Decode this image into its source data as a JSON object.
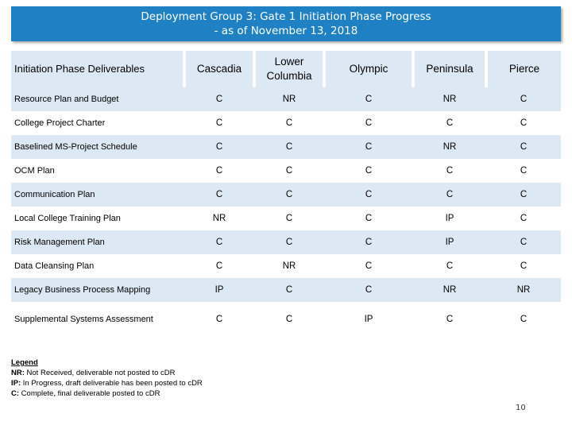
{
  "title": {
    "line1": "Deployment Group 3:  Gate 1 Initiation Phase Progress",
    "line2": "- as of November 13, 2018"
  },
  "table": {
    "headers": [
      "Initiation Phase Deliverables",
      "Cascadia",
      "Lower Columbia",
      "Olympic",
      "Peninsula",
      "Pierce"
    ],
    "rows": [
      [
        "Resource Plan and Budget",
        "C",
        "NR",
        "C",
        "NR",
        "C"
      ],
      [
        "College Project Charter",
        "C",
        "C",
        "C",
        "C",
        "C"
      ],
      [
        "Baselined MS-Project Schedule",
        "C",
        "C",
        "C",
        "NR",
        "C"
      ],
      [
        "OCM Plan",
        "C",
        "C",
        "C",
        "C",
        "C"
      ],
      [
        "Communication Plan",
        "C",
        "C",
        "C",
        "C",
        "C"
      ],
      [
        "Local College Training Plan",
        "NR",
        "C",
        "C",
        "IP",
        "C"
      ],
      [
        "Risk Management Plan",
        "C",
        "C",
        "C",
        "IP",
        "C"
      ],
      [
        "Data Cleansing Plan",
        "C",
        "NR",
        "C",
        "C",
        "C"
      ],
      [
        "Legacy Business Process Mapping",
        "IP",
        "C",
        "C",
        "NR",
        "NR"
      ],
      [
        "Supplemental Systems Assessment",
        "C",
        "C",
        "IP",
        "C",
        "C"
      ]
    ]
  },
  "legend": {
    "title": "Legend",
    "items": [
      {
        "key": "NR:",
        "text": " Not Received, deliverable not posted to cDR"
      },
      {
        "key": "IP:",
        "text": " In Progress, draft deliverable has been posted to cDR"
      },
      {
        "key": "C:",
        "text": " Complete, final deliverable posted to cDR"
      }
    ]
  },
  "page_number": "10",
  "colors": {
    "banner": "#1f81c4",
    "band": "#dce8f4"
  }
}
